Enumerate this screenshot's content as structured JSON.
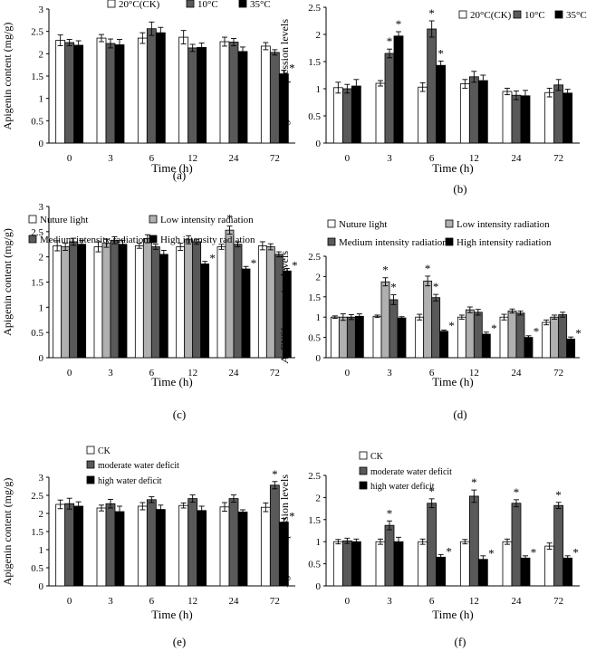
{
  "figure": {
    "panels": [
      {
        "label": "(a)",
        "legend": [
          "20°C(CK)",
          "10°C",
          "35°C"
        ],
        "legend_layout": "top-right-row"
      },
      {
        "label": "(b)",
        "legend": [
          "20°C(CK)",
          "10°C",
          "35°C"
        ],
        "legend_layout": "top-right-row"
      },
      {
        "label": "(c)",
        "legend": [
          "Nuture light",
          "Low intensity radiation",
          "Medium intensity radiation",
          "High intensity radiation"
        ],
        "legend_layout": "top-2x2"
      },
      {
        "label": "(d)",
        "legend": [
          "Nuture light",
          "Low intensity radiation",
          "Medium intensity radiation",
          "High intensity radiation"
        ],
        "legend_layout": "top-2x2"
      },
      {
        "label": "(e)",
        "legend": [
          "CK",
          "moderate water deficit",
          "high water deficit"
        ],
        "legend_layout": "top-left-column"
      },
      {
        "label": "(f)",
        "legend": [
          "CK",
          "moderate water deficit",
          "high water deficit"
        ],
        "legend_layout": "top-left-column"
      }
    ]
  },
  "colors": {
    "series3": [
      "#ffffff",
      "#595959",
      "#000000"
    ],
    "series4": [
      "#ffffff",
      "#b0b0b0",
      "#595959",
      "#000000"
    ]
  },
  "chart_data": [
    {
      "type": "bar",
      "panel": "(a)",
      "categories": [
        "0",
        "3",
        "6",
        "12",
        "24",
        "72"
      ],
      "xlabel": "Time (h)",
      "ylabel": "Apigenin content (mg/g)",
      "ylim": [
        0,
        3
      ],
      "yticks": [
        "0",
        "0.5",
        "1",
        "1.5",
        "2",
        "2.5",
        "3"
      ],
      "grid": false,
      "legend_placement": "top-right",
      "series": [
        {
          "name": "20°C(CK)",
          "values": [
            2.3,
            2.35,
            2.35,
            2.37,
            2.27,
            2.17
          ],
          "errors": [
            0.12,
            0.08,
            0.12,
            0.15,
            0.1,
            0.08
          ],
          "star": [
            false,
            false,
            false,
            false,
            false,
            false
          ]
        },
        {
          "name": "10°C",
          "values": [
            2.25,
            2.23,
            2.56,
            2.13,
            2.26,
            2.03
          ],
          "errors": [
            0.07,
            0.1,
            0.15,
            0.08,
            0.08,
            0.06
          ],
          "star": [
            false,
            false,
            false,
            false,
            false,
            false
          ]
        },
        {
          "name": "35°C",
          "values": [
            2.19,
            2.2,
            2.47,
            2.14,
            2.05,
            1.55
          ],
          "errors": [
            0.1,
            0.12,
            0.12,
            0.1,
            0.1,
            0.08
          ],
          "star": [
            false,
            false,
            false,
            false,
            false,
            true
          ]
        }
      ]
    },
    {
      "type": "bar",
      "panel": "(b)",
      "categories": [
        "0",
        "3",
        "6",
        "12",
        "24",
        "72"
      ],
      "xlabel": "Time (h)",
      "ylabel": "AgFNSI expression levels",
      "ylim": [
        0,
        2.5
      ],
      "yticks": [
        "0",
        "0.5",
        "1",
        "1.5",
        "2",
        "2.5"
      ],
      "grid": false,
      "legend_placement": "top-right",
      "series": [
        {
          "name": "20°C(CK)",
          "values": [
            1.02,
            1.1,
            1.03,
            1.09,
            0.95,
            0.93
          ],
          "errors": [
            0.1,
            0.05,
            0.08,
            0.08,
            0.06,
            0.08
          ],
          "star": [
            false,
            false,
            false,
            false,
            false,
            false
          ]
        },
        {
          "name": "10°C",
          "values": [
            1.0,
            1.65,
            2.1,
            1.22,
            0.88,
            1.07
          ],
          "errors": [
            0.08,
            0.08,
            0.15,
            0.1,
            0.08,
            0.1
          ],
          "star": [
            false,
            true,
            true,
            false,
            false,
            false
          ]
        },
        {
          "name": "35°C",
          "values": [
            1.05,
            1.97,
            1.43,
            1.15,
            0.87,
            0.92
          ],
          "errors": [
            0.12,
            0.08,
            0.08,
            0.1,
            0.1,
            0.07
          ],
          "star": [
            false,
            true,
            true,
            false,
            false,
            false
          ]
        }
      ]
    },
    {
      "type": "bar",
      "panel": "(c)",
      "categories": [
        "0",
        "3",
        "6",
        "12",
        "24",
        "72"
      ],
      "xlabel": "Time (h)",
      "ylabel": "Apigenin content (mg/g)",
      "ylim": [
        0,
        3
      ],
      "yticks": [
        "0",
        "0.5",
        "1",
        "1.5",
        "2",
        "2.5",
        "3"
      ],
      "grid": false,
      "legend_placement": "top",
      "series": [
        {
          "name": "Nuture light",
          "values": [
            2.22,
            2.2,
            2.22,
            2.2,
            2.2,
            2.22
          ],
          "errors": [
            0.1,
            0.1,
            0.05,
            0.07,
            0.05,
            0.08
          ],
          "star": [
            false,
            false,
            false,
            false,
            false,
            false
          ]
        },
        {
          "name": "Low intensity radiation",
          "values": [
            2.2,
            2.27,
            2.36,
            2.34,
            2.53,
            2.2
          ],
          "errors": [
            0.07,
            0.08,
            0.08,
            0.08,
            0.08,
            0.06
          ],
          "star": [
            false,
            false,
            false,
            false,
            true,
            false
          ]
        },
        {
          "name": "Medium intensity radiation",
          "values": [
            2.3,
            2.33,
            2.2,
            2.3,
            2.25,
            2.05
          ],
          "errors": [
            0.07,
            0.07,
            0.05,
            0.05,
            0.05,
            0.05
          ],
          "star": [
            false,
            false,
            false,
            false,
            false,
            false
          ]
        },
        {
          "name": "High intensity radiation",
          "values": [
            2.25,
            2.25,
            2.05,
            1.86,
            1.76,
            1.72
          ],
          "errors": [
            0.08,
            0.08,
            0.08,
            0.05,
            0.05,
            0.05
          ],
          "star": [
            false,
            false,
            false,
            true,
            true,
            true
          ]
        }
      ]
    },
    {
      "type": "bar",
      "panel": "(d)",
      "categories": [
        "0",
        "3",
        "6",
        "12",
        "24",
        "72"
      ],
      "xlabel": "Time (h)",
      "ylabel": "AgFNSI expression levels",
      "ylim": [
        0,
        2.5
      ],
      "yticks": [
        "0",
        "0.5",
        "1",
        "1.5",
        "2",
        "2.5"
      ],
      "grid": false,
      "legend_placement": "top",
      "series": [
        {
          "name": "Nuture light",
          "values": [
            1.0,
            1.02,
            1.0,
            1.0,
            1.0,
            0.87
          ],
          "errors": [
            0.03,
            0.03,
            0.07,
            0.05,
            0.07,
            0.06
          ],
          "star": [
            false,
            false,
            false,
            false,
            false,
            false
          ]
        },
        {
          "name": "Low intensity radiation",
          "values": [
            1.0,
            1.87,
            1.89,
            1.18,
            1.15,
            1.0
          ],
          "errors": [
            0.08,
            0.1,
            0.12,
            0.07,
            0.05,
            0.05
          ],
          "star": [
            false,
            true,
            true,
            false,
            false,
            false
          ]
        },
        {
          "name": "Medium intensity radiation",
          "values": [
            1.0,
            1.43,
            1.48,
            1.12,
            1.1,
            1.06
          ],
          "errors": [
            0.06,
            0.12,
            0.08,
            0.07,
            0.05,
            0.06
          ],
          "star": [
            false,
            true,
            true,
            false,
            false,
            false
          ]
        },
        {
          "name": "High intensity radiation",
          "values": [
            1.02,
            0.98,
            0.65,
            0.58,
            0.5,
            0.46
          ],
          "errors": [
            0.06,
            0.03,
            0.03,
            0.05,
            0.04,
            0.05
          ],
          "star": [
            false,
            false,
            true,
            true,
            true,
            true
          ]
        }
      ]
    },
    {
      "type": "bar",
      "panel": "(e)",
      "categories": [
        "0",
        "3",
        "6",
        "12",
        "24",
        "72"
      ],
      "xlabel": "Time (h)",
      "ylabel": "Apigenin content (mg/g)",
      "ylim": [
        0,
        3
      ],
      "yticks": [
        "0",
        "0.5",
        "1",
        "1.5",
        "2",
        "2.5",
        "3"
      ],
      "grid": false,
      "legend_placement": "top-left",
      "series": [
        {
          "name": "CK",
          "values": [
            2.25,
            2.15,
            2.2,
            2.22,
            2.18,
            2.17
          ],
          "errors": [
            0.12,
            0.08,
            0.1,
            0.07,
            0.12,
            0.12
          ],
          "star": [
            false,
            false,
            false,
            false,
            false,
            false
          ]
        },
        {
          "name": "moderate water deficit",
          "values": [
            2.27,
            2.27,
            2.38,
            2.41,
            2.41,
            2.78
          ],
          "errors": [
            0.15,
            0.12,
            0.08,
            0.1,
            0.1,
            0.1
          ],
          "star": [
            false,
            false,
            false,
            false,
            false,
            true
          ]
        },
        {
          "name": "high water deficit",
          "values": [
            2.2,
            2.05,
            2.11,
            2.08,
            2.04,
            1.76
          ],
          "errors": [
            0.12,
            0.15,
            0.12,
            0.12,
            0.06,
            0.1
          ],
          "star": [
            false,
            false,
            false,
            false,
            false,
            true
          ]
        }
      ]
    },
    {
      "type": "bar",
      "panel": "(f)",
      "categories": [
        "0",
        "3",
        "6",
        "12",
        "24",
        "72"
      ],
      "xlabel": "Time (h)",
      "ylabel": "AgFNSI expression levels",
      "ylim": [
        0,
        2.5
      ],
      "yticks": [
        "0",
        "0.5",
        "1",
        "1.5",
        "2",
        "2.5"
      ],
      "grid": false,
      "legend_placement": "top-left",
      "series": [
        {
          "name": "CK",
          "values": [
            1.0,
            1.0,
            1.0,
            1.0,
            1.0,
            0.9
          ],
          "errors": [
            0.05,
            0.06,
            0.06,
            0.05,
            0.06,
            0.07
          ],
          "star": [
            false,
            false,
            false,
            false,
            false,
            false
          ]
        },
        {
          "name": "moderate water deficit",
          "values": [
            1.02,
            1.37,
            1.87,
            2.03,
            1.87,
            1.82
          ],
          "errors": [
            0.06,
            0.1,
            0.1,
            0.14,
            0.08,
            0.07
          ],
          "star": [
            false,
            true,
            true,
            true,
            true,
            true
          ]
        },
        {
          "name": "high water deficit",
          "values": [
            1.0,
            1.0,
            0.65,
            0.6,
            0.63,
            0.63
          ],
          "errors": [
            0.06,
            0.1,
            0.06,
            0.08,
            0.05,
            0.05
          ],
          "star": [
            false,
            false,
            true,
            true,
            true,
            true
          ]
        }
      ]
    }
  ]
}
